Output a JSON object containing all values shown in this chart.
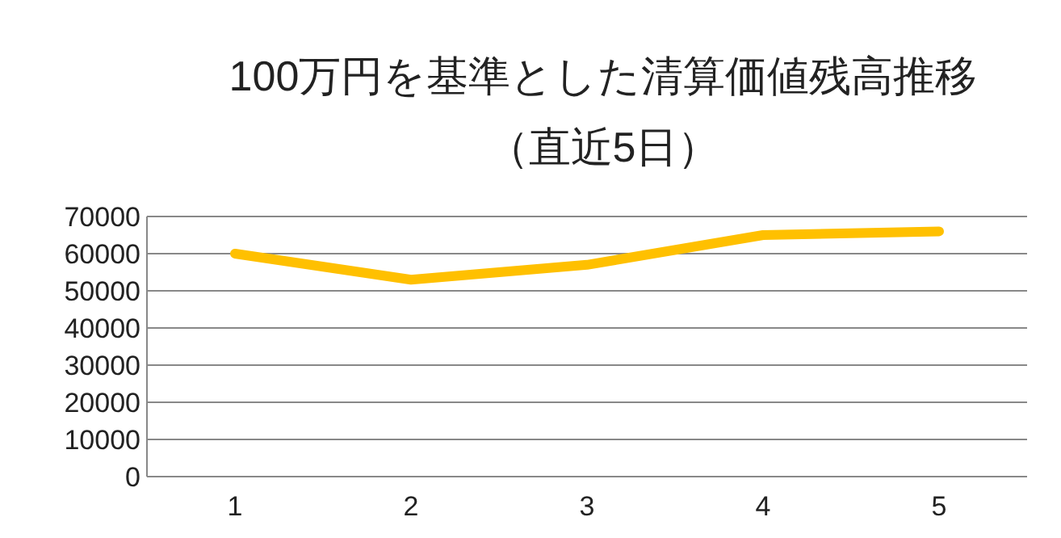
{
  "chart_data": {
    "type": "line",
    "title": "100万円を基準とした清算価値残高推移",
    "subtitle": "（直近5日）",
    "categories": [
      "1",
      "2",
      "3",
      "4",
      "5"
    ],
    "series": [
      {
        "color": "#ffc000",
        "values": [
          60000,
          53000,
          57000,
          65000,
          66000
        ]
      }
    ],
    "ylim": [
      0,
      70000
    ],
    "yticks": [
      0,
      10000,
      20000,
      30000,
      40000,
      50000,
      60000,
      70000
    ],
    "grid": "y",
    "line_style": "solid"
  }
}
